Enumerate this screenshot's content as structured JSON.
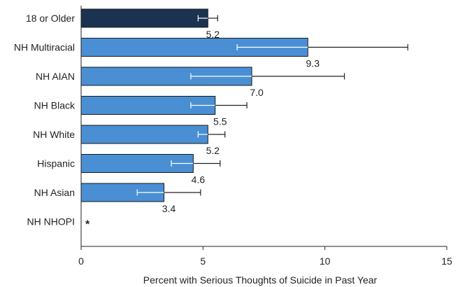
{
  "chart_data": {
    "type": "bar",
    "orientation": "horizontal",
    "categories": [
      "18 or Older",
      "NH Multiracial",
      "NH AIAN",
      "NH Black",
      "NH White",
      "Hispanic",
      "NH Asian",
      "NH NHOPI"
    ],
    "values": [
      5.2,
      9.3,
      7.0,
      5.5,
      5.2,
      4.6,
      3.4,
      null
    ],
    "value_labels": [
      "5.2",
      "9.3",
      "7.0",
      "5.5",
      "5.2",
      "4.6",
      "3.4",
      "*"
    ],
    "ci_low": [
      4.8,
      6.4,
      4.5,
      4.5,
      4.8,
      3.7,
      2.3,
      null
    ],
    "ci_high": [
      5.6,
      13.4,
      10.8,
      6.8,
      5.9,
      5.7,
      4.9,
      null
    ],
    "highlight_index": 0,
    "xlabel": "Percent with Serious Thoughts of Suicide in Past Year",
    "xlim": [
      0,
      15
    ],
    "xticks": [
      "0",
      "5",
      "10",
      "15"
    ],
    "grid": false,
    "colors": {
      "highlight": "#1b3350",
      "bar": "#4a8fd3",
      "bar_edge": "#1a1a1a",
      "axis": "#222222",
      "whisker_on_bar": "#ffffff",
      "whisker_off_bar": "#222222"
    }
  }
}
